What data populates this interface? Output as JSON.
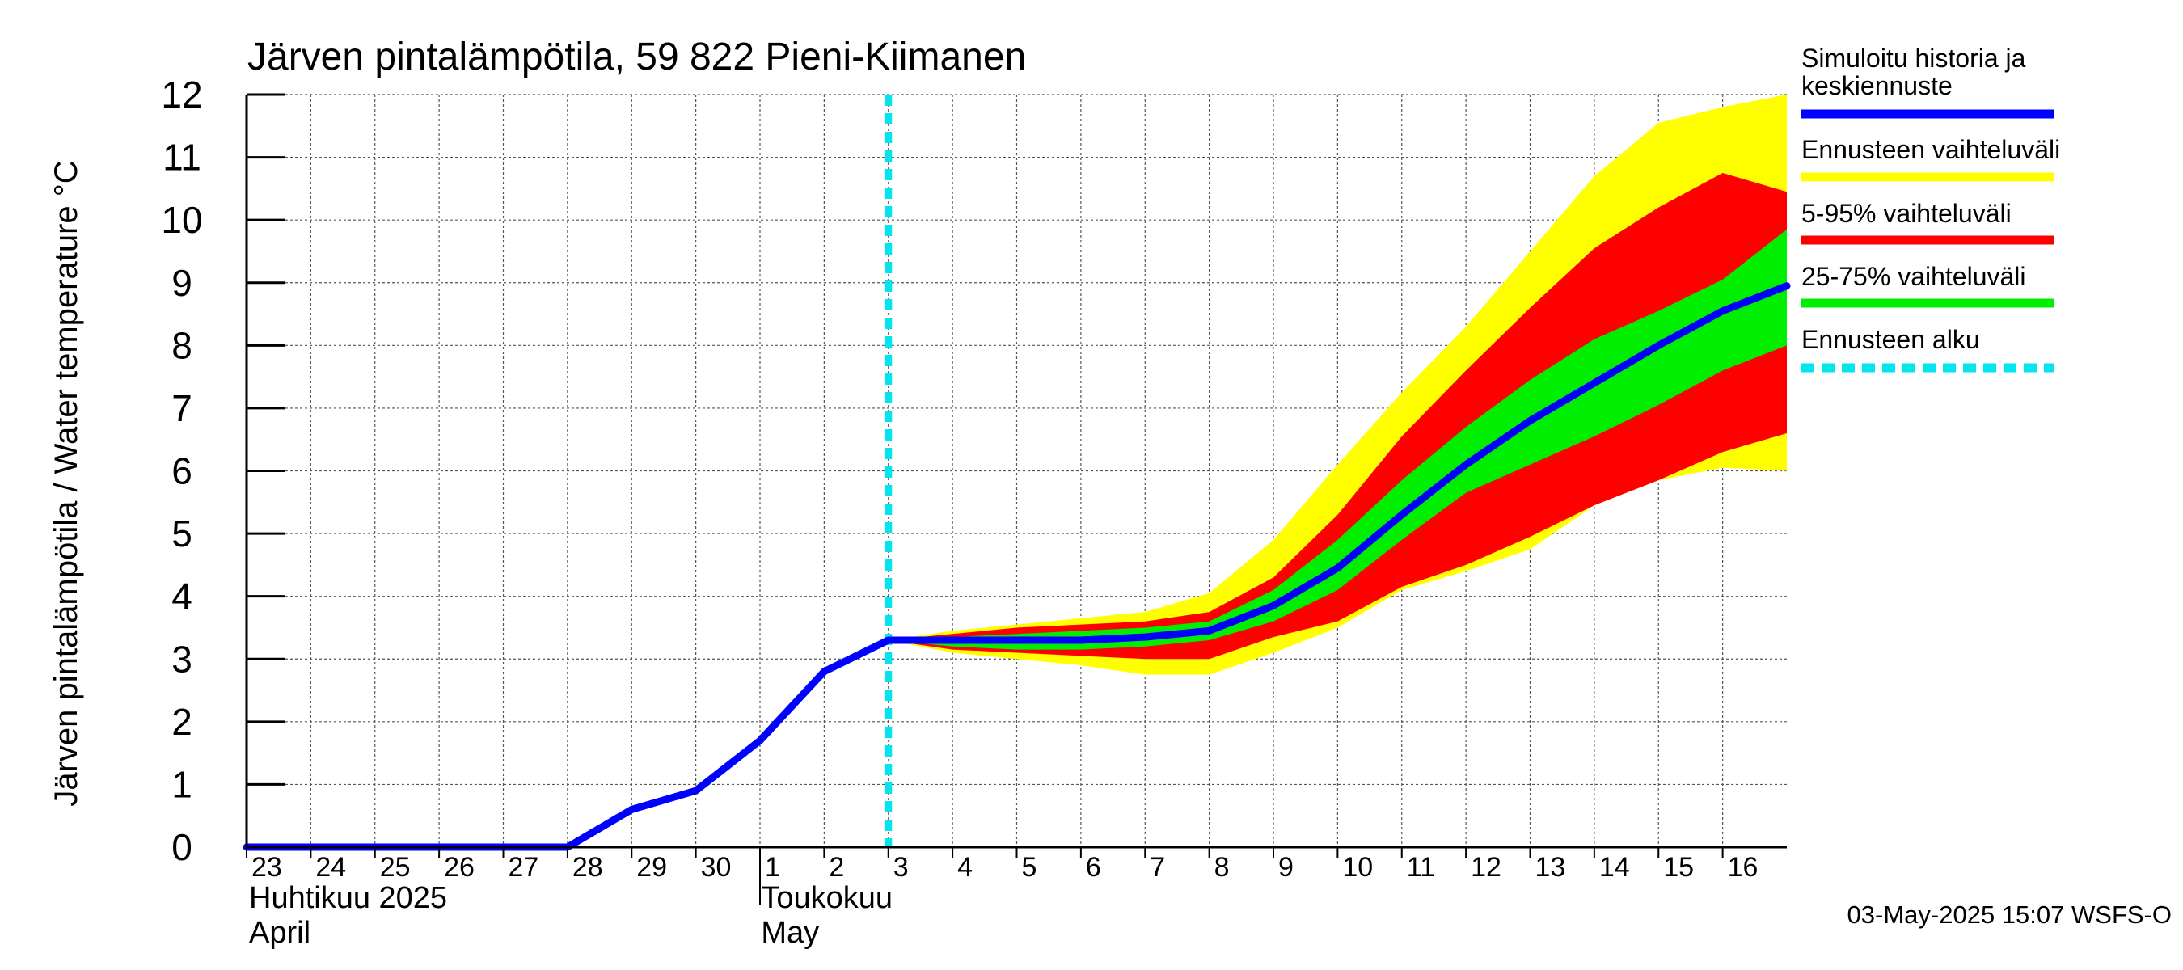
{
  "chart_data": {
    "type": "area",
    "title": "Järven pintalämpötila, 59 822 Pieni-Kiimanen",
    "ylabel": "Järven pintalämpötila / Water temperature °C",
    "xlabel": "",
    "ylim": [
      0,
      12
    ],
    "yticks": [
      "0",
      "1",
      "2",
      "3",
      "4",
      "5",
      "6",
      "7",
      "8",
      "9",
      "10",
      "11",
      "12"
    ],
    "grid": true,
    "xticks": [
      {
        "day": 0,
        "label": "23"
      },
      {
        "day": 1,
        "label": "24"
      },
      {
        "day": 2,
        "label": "25"
      },
      {
        "day": 3,
        "label": "26"
      },
      {
        "day": 4,
        "label": "27"
      },
      {
        "day": 5,
        "label": "28"
      },
      {
        "day": 6,
        "label": "29"
      },
      {
        "day": 7,
        "label": "30"
      },
      {
        "day": 8,
        "label": "1"
      },
      {
        "day": 9,
        "label": "2"
      },
      {
        "day": 10,
        "label": "3"
      },
      {
        "day": 11,
        "label": "4"
      },
      {
        "day": 12,
        "label": "5"
      },
      {
        "day": 13,
        "label": "6"
      },
      {
        "day": 14,
        "label": "7"
      },
      {
        "day": 15,
        "label": "8"
      },
      {
        "day": 16,
        "label": "9"
      },
      {
        "day": 17,
        "label": "10"
      },
      {
        "day": 18,
        "label": "11"
      },
      {
        "day": 19,
        "label": "12"
      },
      {
        "day": 20,
        "label": "13"
      },
      {
        "day": 21,
        "label": "14"
      },
      {
        "day": 22,
        "label": "15"
      },
      {
        "day": 23,
        "label": "16"
      }
    ],
    "xrange": [
      0,
      24
    ],
    "months": [
      {
        "day": 0,
        "fi": "Huhtikuu  2025",
        "en": "April"
      },
      {
        "day": 8,
        "fi": "Toukokuu",
        "en": "May"
      }
    ],
    "forecast_start": 10,
    "series": [
      {
        "name": "Simuloitu historia ja keskiennuste",
        "color": "#0000ff",
        "x": [
          0,
          1,
          2,
          3,
          4,
          5,
          6,
          7,
          8,
          9,
          10,
          11,
          12,
          13,
          14,
          15,
          16,
          17,
          18,
          19,
          20,
          21,
          22,
          23,
          24
        ],
        "y": [
          0,
          0,
          0,
          0,
          0,
          0,
          0.6,
          0.9,
          1.7,
          2.8,
          3.3,
          3.3,
          3.3,
          3.3,
          3.35,
          3.45,
          3.85,
          4.45,
          5.3,
          6.1,
          6.8,
          7.4,
          8.0,
          8.55,
          8.95
        ]
      },
      {
        "name": "Ennusteen vaihteluväli",
        "color": "#ffff00",
        "x": [
          10,
          11,
          12,
          13,
          14,
          15,
          16,
          17,
          18,
          19,
          20,
          21,
          22,
          23,
          24
        ],
        "upper": [
          3.3,
          3.45,
          3.55,
          3.65,
          3.75,
          4.05,
          4.9,
          6.1,
          7.25,
          8.3,
          9.5,
          10.7,
          11.55,
          11.8,
          12.0
        ],
        "lower": [
          3.3,
          3.1,
          3.0,
          2.9,
          2.75,
          2.75,
          3.1,
          3.5,
          4.1,
          4.4,
          4.75,
          5.45,
          5.85,
          6.05,
          6.0
        ]
      },
      {
        "name": "5-95% vaihteluväli",
        "color": "#ff0000",
        "x": [
          10,
          11,
          12,
          13,
          14,
          15,
          16,
          17,
          18,
          19,
          20,
          21,
          22,
          23,
          24
        ],
        "upper": [
          3.3,
          3.4,
          3.5,
          3.55,
          3.6,
          3.75,
          4.3,
          5.3,
          6.55,
          7.6,
          8.6,
          9.55,
          10.2,
          10.75,
          10.45
        ],
        "lower": [
          3.3,
          3.15,
          3.1,
          3.05,
          3.0,
          3.0,
          3.35,
          3.6,
          4.15,
          4.5,
          4.95,
          5.45,
          5.85,
          6.3,
          6.6
        ]
      },
      {
        "name": "25-75% vaihteluväli",
        "color": "#00ee00",
        "x": [
          10,
          11,
          12,
          13,
          14,
          15,
          16,
          17,
          18,
          19,
          20,
          21,
          22,
          23,
          24
        ],
        "upper": [
          3.3,
          3.35,
          3.4,
          3.45,
          3.5,
          3.6,
          4.1,
          4.9,
          5.85,
          6.7,
          7.45,
          8.1,
          8.55,
          9.05,
          9.85
        ],
        "lower": [
          3.3,
          3.2,
          3.15,
          3.15,
          3.2,
          3.3,
          3.6,
          4.1,
          4.9,
          5.65,
          6.1,
          6.55,
          7.05,
          7.6,
          8.0
        ]
      }
    ],
    "legend": {
      "placement": "right",
      "items": [
        {
          "label": "Simuloitu historia ja\nkeskiennuste",
          "color": "#0000ff",
          "style": "solid"
        },
        {
          "label": "Ennusteen vaihteluväli",
          "color": "#ffff00",
          "style": "solid"
        },
        {
          "label": "5-95% vaihteluväli",
          "color": "#ff0000",
          "style": "solid"
        },
        {
          "label": "25-75% vaihteluväli",
          "color": "#00ee00",
          "style": "solid"
        },
        {
          "label": "Ennusteen alku",
          "color": "#00e5ee",
          "style": "dashed"
        }
      ]
    }
  },
  "footer": {
    "timestamp": "03-May-2025 15:07 WSFS-O"
  }
}
